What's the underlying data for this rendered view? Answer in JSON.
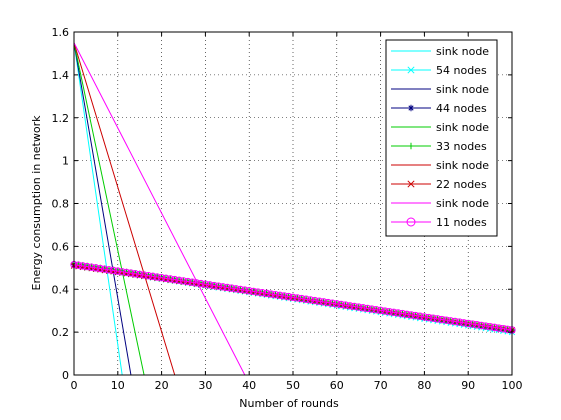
{
  "chart_data": {
    "type": "line",
    "xlabel": "Number of rounds",
    "ylabel": "Energy consumption in network",
    "xlim": [
      0,
      100
    ],
    "ylim": [
      0,
      1.6
    ],
    "grid": true,
    "legend_placement": "top-right",
    "xticks": [
      "0",
      "10",
      "20",
      "30",
      "40",
      "50",
      "60",
      "70",
      "80",
      "90",
      "100"
    ],
    "yticks": [
      "0",
      "0.2",
      "0.4",
      "0.6",
      "0.8",
      "1",
      "1.2",
      "1.4",
      "1.6"
    ],
    "series": [
      {
        "name": "sink node",
        "color": "#00ffff",
        "marker": "none",
        "x": [
          0,
          11,
          100
        ],
        "y": [
          1.55,
          0,
          0
        ]
      },
      {
        "name": "54 nodes",
        "color": "#00ffff",
        "marker": "x",
        "x": [
          0,
          100
        ],
        "y": [
          0.51,
          0.2
        ]
      },
      {
        "name": "sink node",
        "color": "#000080",
        "marker": "none",
        "x": [
          0,
          13,
          100
        ],
        "y": [
          1.55,
          0,
          0
        ]
      },
      {
        "name": "44 nodes",
        "color": "#000080",
        "marker": "asterisk",
        "x": [
          0,
          100
        ],
        "y": [
          0.515,
          0.205
        ]
      },
      {
        "name": "sink node",
        "color": "#00cc00",
        "marker": "none",
        "x": [
          0,
          16,
          100
        ],
        "y": [
          1.55,
          0,
          0
        ]
      },
      {
        "name": "33 nodes",
        "color": "#00cc00",
        "marker": "plus",
        "x": [
          0,
          100
        ],
        "y": [
          0.52,
          0.21
        ]
      },
      {
        "name": "sink node",
        "color": "#cc0000",
        "marker": "none",
        "x": [
          0,
          23,
          100
        ],
        "y": [
          1.55,
          0,
          0
        ]
      },
      {
        "name": "22 nodes",
        "color": "#cc0000",
        "marker": "x",
        "x": [
          0,
          100
        ],
        "y": [
          0.51,
          0.21
        ]
      },
      {
        "name": "sink node",
        "color": "#ff00ff",
        "marker": "none",
        "x": [
          0,
          39,
          100
        ],
        "y": [
          1.55,
          0,
          0
        ]
      },
      {
        "name": "11 nodes",
        "color": "#ff00ff",
        "marker": "circle",
        "x": [
          0,
          100
        ],
        "y": [
          0.515,
          0.21
        ]
      }
    ]
  }
}
